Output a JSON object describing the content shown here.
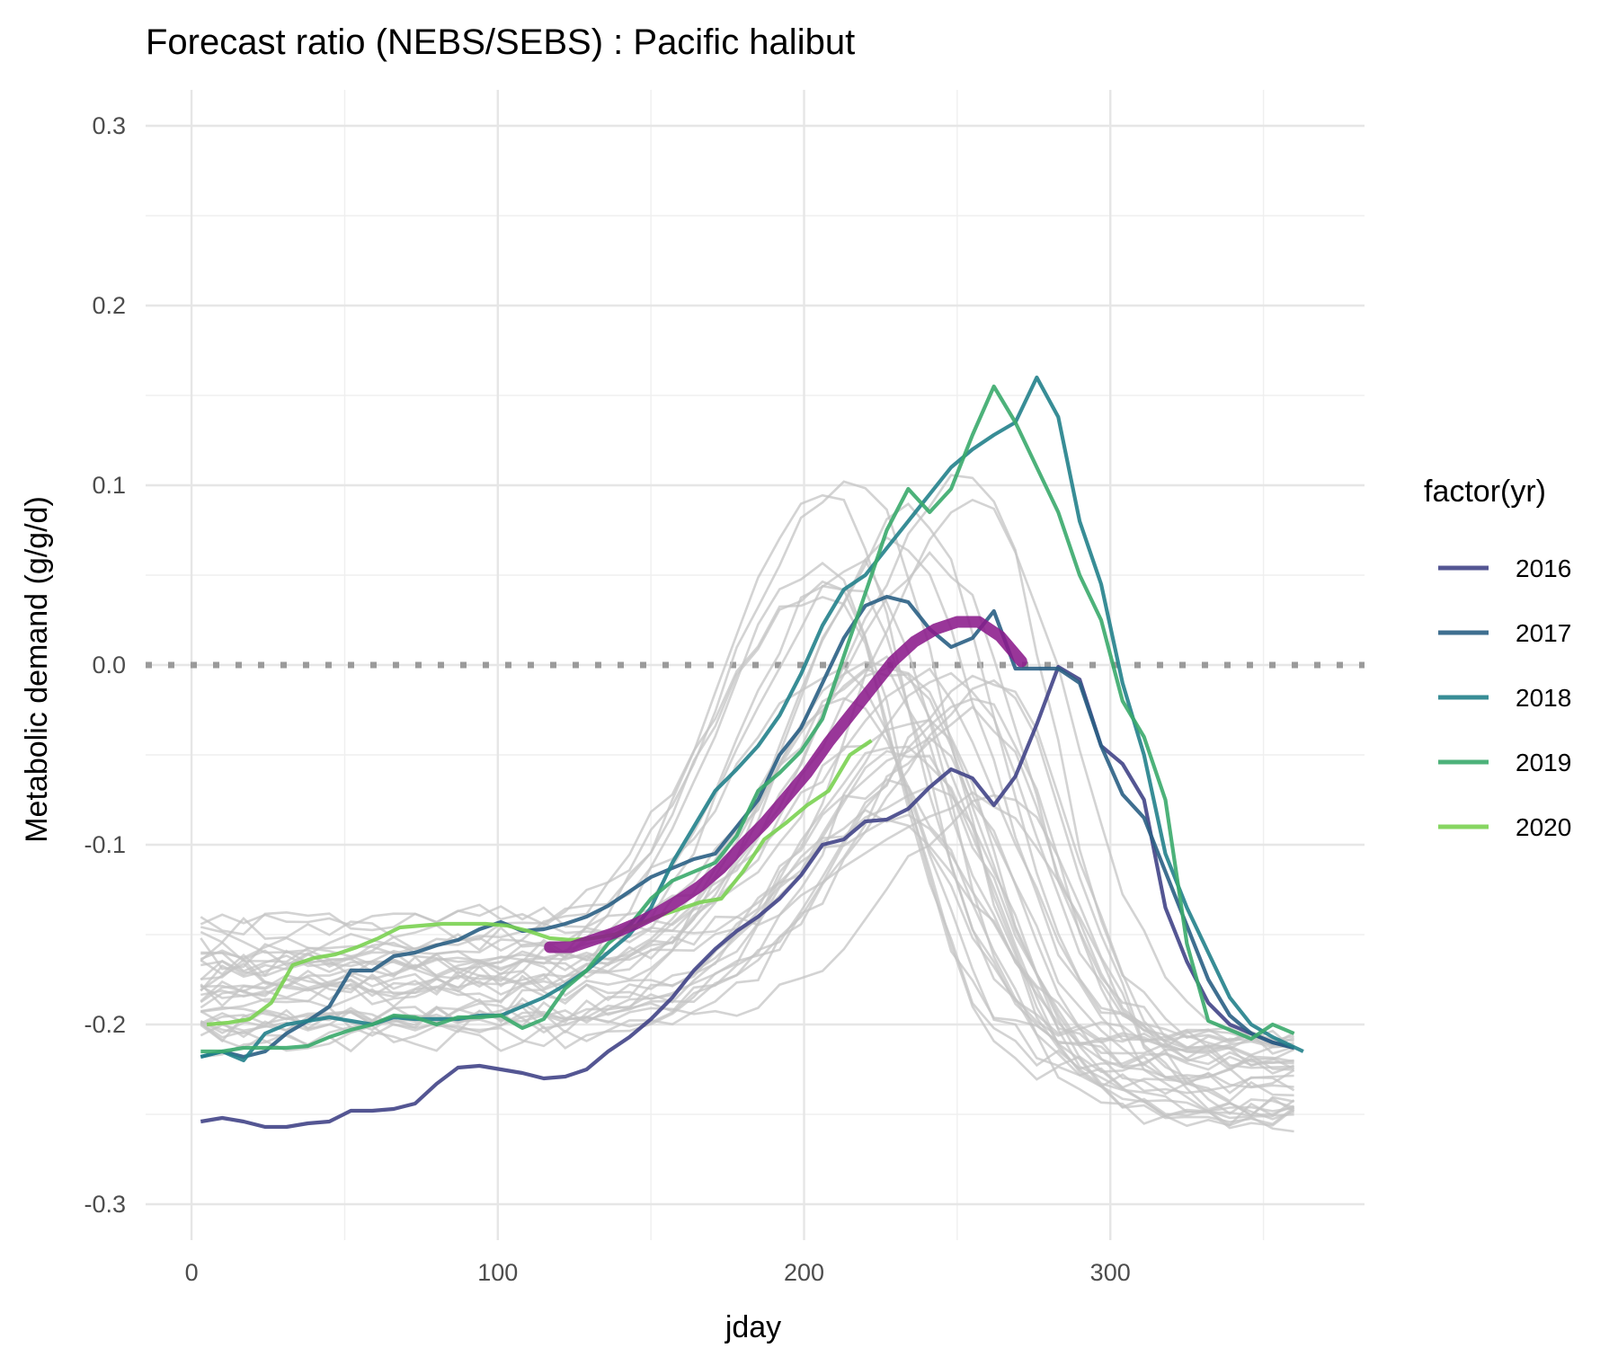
{
  "chart_data": {
    "type": "line",
    "title": "Forecast ratio (NEBS/SEBS) : Pacific halibut",
    "xlabel": "jday",
    "ylabel": "Metabolic demand (g/g/d)",
    "xlim": [
      -15,
      383
    ],
    "ylim": [
      -0.32,
      0.32
    ],
    "x_ticks": [
      0,
      100,
      200,
      300
    ],
    "y_ticks": [
      -0.3,
      -0.2,
      -0.1,
      0.0,
      0.1,
      0.2,
      0.3
    ],
    "x_tick_labels": [
      "0",
      "100",
      "200",
      "300"
    ],
    "y_tick_labels": [
      "-0.3",
      "-0.2",
      "-0.1",
      "0.0",
      "0.1",
      "0.2",
      "0.3"
    ],
    "grid": true,
    "reference_line": {
      "y": 0.0,
      "style": "dotted",
      "color": "#9a9a9a"
    },
    "legend": {
      "title": "factor(yr)",
      "placement": "right",
      "entries": [
        "2016",
        "2017",
        "2018",
        "2019",
        "2020"
      ]
    },
    "background_series_color": "#c4c4c4",
    "series": [
      {
        "name": "2016",
        "color": "#414487",
        "x": [
          3,
          10,
          17,
          24,
          31,
          38,
          45,
          52,
          59,
          66,
          73,
          80,
          87,
          94,
          101,
          108,
          115,
          122,
          129,
          136,
          143,
          150,
          157,
          164,
          171,
          178,
          185,
          192,
          199,
          206,
          213,
          220,
          227,
          234,
          241,
          248,
          255,
          262,
          269,
          276,
          283,
          290,
          297,
          304,
          311,
          318,
          325,
          332,
          339,
          346,
          353,
          360
        ],
        "y": [
          -0.254,
          -0.252,
          -0.254,
          -0.257,
          -0.257,
          -0.255,
          -0.254,
          -0.248,
          -0.248,
          -0.247,
          -0.244,
          -0.233,
          -0.224,
          -0.223,
          -0.225,
          -0.227,
          -0.23,
          -0.229,
          -0.225,
          -0.215,
          -0.207,
          -0.197,
          -0.185,
          -0.17,
          -0.158,
          -0.148,
          -0.14,
          -0.13,
          -0.117,
          -0.1,
          -0.097,
          -0.087,
          -0.086,
          -0.08,
          -0.068,
          -0.058,
          -0.063,
          -0.078,
          -0.062,
          -0.033,
          -0.001,
          -0.008,
          -0.045,
          -0.055,
          -0.075,
          -0.135,
          -0.165,
          -0.188,
          -0.2,
          -0.205,
          -0.21,
          -0.213
        ]
      },
      {
        "name": "2017",
        "color": "#2a5f84",
        "x": [
          3,
          10,
          17,
          24,
          31,
          38,
          45,
          52,
          59,
          66,
          73,
          80,
          87,
          94,
          101,
          108,
          115,
          122,
          129,
          136,
          143,
          150,
          157,
          164,
          171,
          178,
          185,
          192,
          199,
          206,
          213,
          220,
          227,
          234,
          241,
          248,
          255,
          262,
          269,
          276,
          283,
          290,
          297,
          304,
          311,
          318,
          325,
          332,
          339,
          346,
          353,
          360
        ],
        "y": [
          -0.218,
          -0.215,
          -0.218,
          -0.215,
          -0.205,
          -0.198,
          -0.19,
          -0.17,
          -0.17,
          -0.162,
          -0.16,
          -0.156,
          -0.153,
          -0.147,
          -0.143,
          -0.148,
          -0.147,
          -0.144,
          -0.14,
          -0.134,
          -0.126,
          -0.118,
          -0.113,
          -0.108,
          -0.105,
          -0.09,
          -0.075,
          -0.05,
          -0.035,
          -0.01,
          0.015,
          0.033,
          0.038,
          0.035,
          0.02,
          0.01,
          0.015,
          0.03,
          -0.002,
          -0.002,
          -0.002,
          -0.01,
          -0.045,
          -0.072,
          -0.085,
          -0.115,
          -0.145,
          -0.175,
          -0.195,
          -0.205,
          -0.21,
          -0.213
        ]
      },
      {
        "name": "2018",
        "color": "#22818b",
        "x": [
          3,
          10,
          17,
          24,
          31,
          38,
          45,
          52,
          59,
          66,
          73,
          80,
          87,
          94,
          101,
          108,
          115,
          122,
          129,
          136,
          143,
          150,
          157,
          164,
          171,
          178,
          185,
          192,
          199,
          206,
          213,
          220,
          227,
          234,
          241,
          248,
          255,
          262,
          269,
          276,
          283,
          290,
          297,
          304,
          311,
          318,
          325,
          332,
          339,
          346,
          353,
          363
        ],
        "y": [
          -0.218,
          -0.215,
          -0.22,
          -0.205,
          -0.2,
          -0.198,
          -0.196,
          -0.198,
          -0.2,
          -0.196,
          -0.197,
          -0.197,
          -0.197,
          -0.195,
          -0.195,
          -0.19,
          -0.185,
          -0.178,
          -0.17,
          -0.16,
          -0.15,
          -0.135,
          -0.11,
          -0.09,
          -0.07,
          -0.058,
          -0.045,
          -0.028,
          -0.005,
          0.022,
          0.042,
          0.05,
          0.065,
          0.08,
          0.095,
          0.11,
          0.12,
          0.128,
          0.135,
          0.16,
          0.138,
          0.08,
          0.045,
          -0.01,
          -0.05,
          -0.105,
          -0.135,
          -0.16,
          -0.185,
          -0.2,
          -0.207,
          -0.215
        ]
      },
      {
        "name": "2019",
        "color": "#3aaa6c",
        "x": [
          3,
          10,
          17,
          24,
          31,
          38,
          45,
          52,
          59,
          66,
          73,
          80,
          87,
          94,
          101,
          108,
          115,
          122,
          129,
          136,
          143,
          150,
          157,
          164,
          171,
          178,
          185,
          192,
          199,
          206,
          213,
          220,
          227,
          234,
          241,
          248,
          255,
          262,
          269,
          276,
          283,
          290,
          297,
          304,
          311,
          318,
          325,
          332,
          339,
          346,
          353,
          360
        ],
        "y": [
          -0.215,
          -0.215,
          -0.213,
          -0.213,
          -0.213,
          -0.212,
          -0.207,
          -0.203,
          -0.2,
          -0.195,
          -0.196,
          -0.2,
          -0.196,
          -0.196,
          -0.195,
          -0.202,
          -0.197,
          -0.18,
          -0.17,
          -0.155,
          -0.145,
          -0.13,
          -0.12,
          -0.115,
          -0.11,
          -0.095,
          -0.07,
          -0.06,
          -0.048,
          -0.03,
          0.005,
          0.04,
          0.075,
          0.098,
          0.085,
          0.098,
          0.128,
          0.155,
          0.135,
          0.11,
          0.085,
          0.05,
          0.025,
          -0.02,
          -0.04,
          -0.075,
          -0.155,
          -0.198,
          -0.203,
          -0.208,
          -0.2,
          -0.205
        ]
      },
      {
        "name": "2020",
        "color": "#7ad151",
        "x": [
          5,
          12,
          19,
          26,
          33,
          40,
          47,
          54,
          61,
          68,
          75,
          82,
          89,
          96,
          103,
          110,
          117,
          124,
          131,
          138,
          145,
          152,
          159,
          166,
          173,
          180,
          187,
          194,
          201,
          208,
          215,
          222
        ],
        "y": [
          -0.2,
          -0.199,
          -0.197,
          -0.188,
          -0.167,
          -0.163,
          -0.161,
          -0.157,
          -0.152,
          -0.146,
          -0.145,
          -0.144,
          -0.144,
          -0.144,
          -0.145,
          -0.148,
          -0.152,
          -0.153,
          -0.152,
          -0.15,
          -0.145,
          -0.14,
          -0.136,
          -0.132,
          -0.13,
          -0.115,
          -0.097,
          -0.088,
          -0.078,
          -0.07,
          -0.05,
          -0.042
        ]
      }
    ],
    "trend_line": {
      "color": "#8b1a8b",
      "x": [
        117,
        124,
        131,
        138,
        145,
        152,
        159,
        166,
        173,
        180,
        187,
        194,
        201,
        208,
        215,
        222,
        229,
        236,
        243,
        250,
        257,
        264,
        271
      ],
      "y": [
        -0.157,
        -0.157,
        -0.153,
        -0.149,
        -0.144,
        -0.138,
        -0.131,
        -0.123,
        -0.113,
        -0.1,
        -0.088,
        -0.074,
        -0.06,
        -0.043,
        -0.028,
        -0.013,
        0.002,
        0.013,
        0.02,
        0.024,
        0.024,
        0.016,
        0.002
      ]
    }
  }
}
